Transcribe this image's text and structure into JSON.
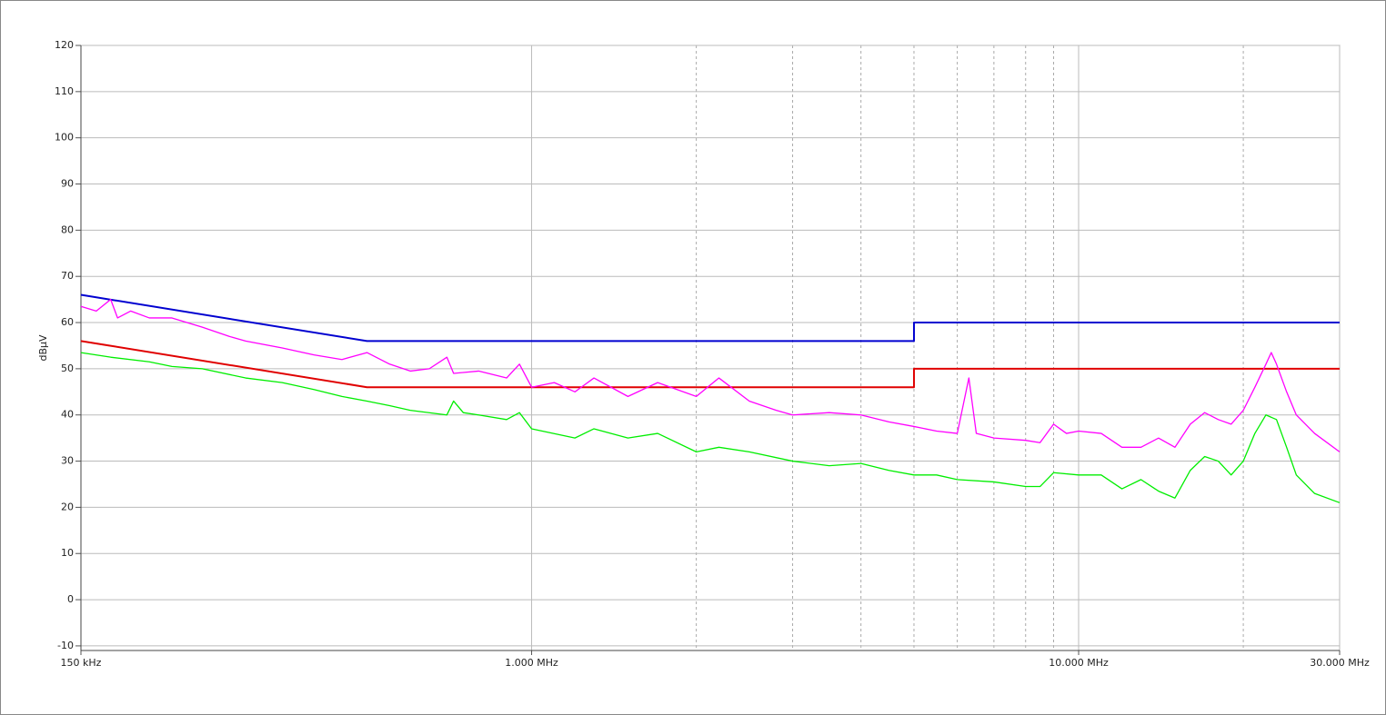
{
  "chart_data": {
    "type": "line",
    "y_label": "dBµV",
    "x_scale": "log",
    "xlim": [
      0.15,
      30
    ],
    "ylim": [
      -11,
      120
    ],
    "xticks": [
      {
        "value": 0.15,
        "label": "150 kHz"
      },
      {
        "value": 1,
        "label": "1.000 MHz"
      },
      {
        "value": 10,
        "label": "10.000 MHz"
      },
      {
        "value": 30,
        "label": "30.000 MHz"
      }
    ],
    "xgrid_minor": [
      2,
      3,
      4,
      5,
      6,
      7,
      8,
      9,
      20
    ],
    "yticks": [
      -10,
      0,
      10,
      20,
      30,
      40,
      50,
      60,
      70,
      80,
      90,
      100,
      110,
      120
    ],
    "grid": true,
    "series": [
      {
        "color": "#0000d0",
        "x": [
          0.15,
          0.5,
          5,
          5,
          30
        ],
        "values": [
          66,
          56,
          56,
          60,
          60
        ]
      },
      {
        "color": "#e00000",
        "x": [
          0.15,
          0.5,
          5,
          5,
          30
        ],
        "values": [
          56,
          46,
          46,
          50,
          50
        ]
      },
      {
        "color": "#ff00ff",
        "x": [
          0.15,
          0.16,
          0.17,
          0.175,
          0.185,
          0.2,
          0.22,
          0.25,
          0.28,
          0.3,
          0.35,
          0.4,
          0.45,
          0.5,
          0.55,
          0.6,
          0.65,
          0.7,
          0.72,
          0.8,
          0.9,
          0.95,
          1.0,
          1.1,
          1.2,
          1.3,
          1.5,
          1.7,
          2.0,
          2.2,
          2.5,
          2.8,
          3,
          3.5,
          4,
          4.5,
          5,
          5.5,
          6,
          6.3,
          6.5,
          7,
          8,
          8.5,
          9,
          9.5,
          10,
          11,
          12,
          13,
          14,
          15,
          16,
          17,
          18,
          19,
          20,
          21,
          22,
          22.5,
          23,
          24,
          25,
          27,
          30
        ],
        "values": [
          63.5,
          62.5,
          65,
          61,
          62.5,
          61,
          61,
          59,
          57,
          56,
          54.5,
          53,
          52,
          53.5,
          51,
          49.5,
          50,
          52.5,
          49,
          49.5,
          48,
          51,
          46,
          47,
          45,
          48,
          44,
          47,
          44,
          48,
          43,
          41,
          40,
          40.5,
          40,
          38.5,
          37.5,
          36.5,
          36,
          48,
          36,
          35,
          34.5,
          34,
          38,
          36,
          36.5,
          36,
          33,
          33,
          35,
          33,
          38,
          40.5,
          39,
          38,
          41,
          46,
          51,
          53.5,
          51,
          45,
          40,
          36,
          32
        ]
      },
      {
        "color": "#00ee00",
        "x": [
          0.15,
          0.17,
          0.2,
          0.22,
          0.25,
          0.3,
          0.35,
          0.4,
          0.45,
          0.5,
          0.55,
          0.6,
          0.7,
          0.72,
          0.75,
          0.8,
          0.9,
          0.95,
          1.0,
          1.2,
          1.3,
          1.5,
          1.7,
          2.0,
          2.2,
          2.5,
          3,
          3.5,
          4,
          4.5,
          5,
          5.5,
          6,
          7,
          8,
          8.5,
          9,
          10,
          11,
          12,
          13,
          14,
          15,
          16,
          17,
          18,
          19,
          20,
          21,
          22,
          23,
          24,
          25,
          27,
          30
        ],
        "values": [
          53.5,
          52.5,
          51.5,
          50.5,
          50,
          48,
          47,
          45.5,
          44,
          43,
          42,
          41,
          40,
          43,
          40.5,
          40,
          39,
          40.5,
          37,
          35,
          37,
          35,
          36,
          32,
          33,
          32,
          30,
          29,
          29.5,
          28,
          27,
          27,
          26,
          25.5,
          24.5,
          24.5,
          27.5,
          27,
          27,
          24,
          26,
          23.5,
          22,
          28,
          31,
          30,
          27,
          30,
          36,
          40,
          39,
          33,
          27,
          23,
          21
        ]
      }
    ]
  }
}
